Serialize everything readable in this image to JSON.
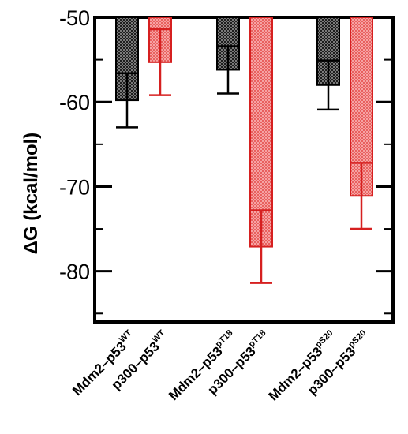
{
  "chart_data": {
    "type": "bar",
    "title": "",
    "xlabel": "",
    "ylabel": "ΔG  (kcal/mol)",
    "ylim": [
      -86,
      -50
    ],
    "yticks": [
      -50,
      -60,
      -70,
      -80
    ],
    "ytick_labels": [
      "-50",
      "-60",
      "-70",
      "-80"
    ],
    "grid": false,
    "bars_hang_from": -50,
    "categories": [
      {
        "base": "Mdm2–p53",
        "sup": "WT"
      },
      {
        "base": "p300–p53",
        "sup": "WT"
      },
      {
        "base": "Mdm2–p53",
        "sup": "pT18"
      },
      {
        "base": "p300–p53",
        "sup": "pT18"
      },
      {
        "base": "Mdm2–p53",
        "sup": "pS20"
      },
      {
        "base": "p300–p53",
        "sup": "pS20"
      }
    ],
    "values": [
      -59.8,
      -55.3,
      -56.2,
      -77.1,
      -58.0,
      -71.1
    ],
    "error": [
      3.2,
      3.9,
      2.8,
      4.3,
      2.9,
      3.9
    ],
    "bar_colors": [
      "#2b2b2b",
      "#e03030",
      "#2b2b2b",
      "#e03030",
      "#2b2b2b",
      "#e03030"
    ]
  }
}
